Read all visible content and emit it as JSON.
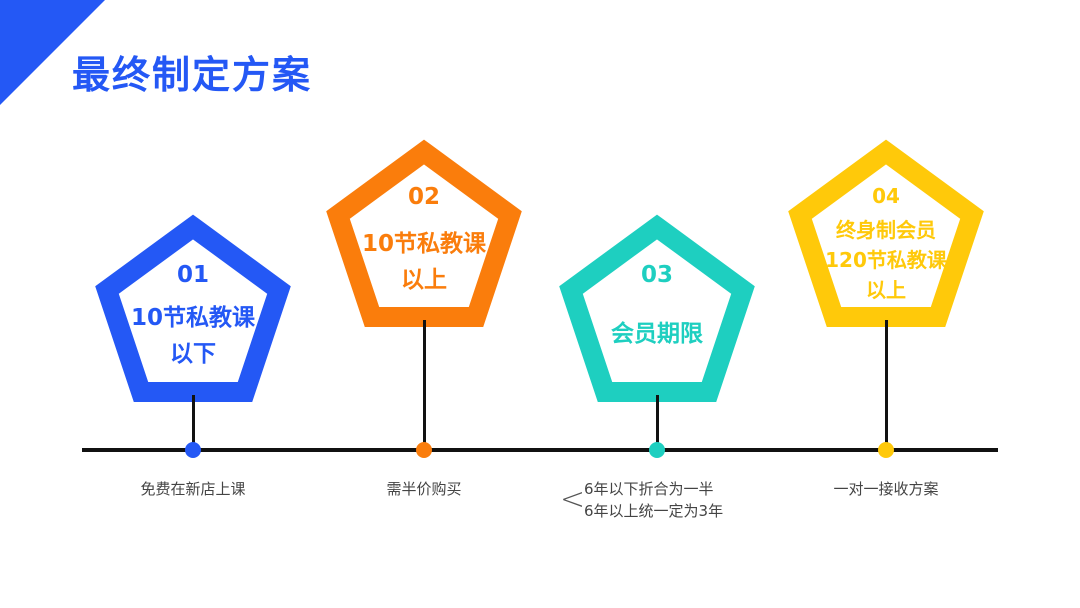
{
  "title": "最终制定方案",
  "colors": {
    "blue": "#2458F5",
    "orange": "#FA7D0C",
    "teal": "#1ECFC0",
    "yellow": "#FFC90A",
    "line": "#111111"
  },
  "steps": [
    {
      "num": "01",
      "lines": [
        "10节私教课",
        "以下"
      ],
      "caption": [
        "免费在新店上课"
      ]
    },
    {
      "num": "02",
      "lines": [
        "10节私教课",
        "以上"
      ],
      "caption": [
        "需半价购买"
      ]
    },
    {
      "num": "03",
      "lines": [
        "会员期限"
      ],
      "caption": [
        "6年以下折合为一半",
        "6年以上统一定为3年"
      ],
      "caption_marker": "<"
    },
    {
      "num": "04",
      "lines": [
        "终身制会员",
        "120节私教课",
        "以上"
      ],
      "caption": [
        "一对一接收方案"
      ]
    }
  ]
}
